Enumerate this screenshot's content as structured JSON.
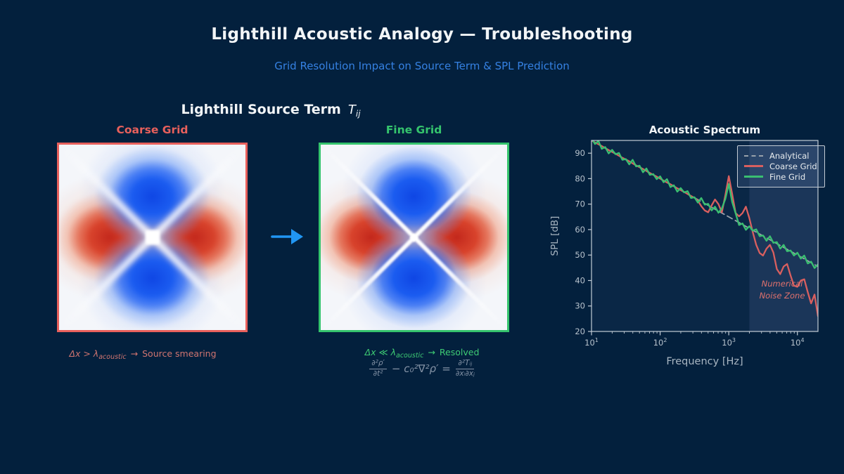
{
  "page": {
    "title": "Lighthill Acoustic Analogy — Troubleshooting",
    "subtitle": "Grid Resolution Impact on Source Term & SPL Prediction",
    "subtitle_color": "#3581e2",
    "background_color": "#03203d"
  },
  "source_term": {
    "heading": {
      "text": "Lighthill Source Term",
      "symbol": "T",
      "symbol_sub": "ij"
    },
    "arrow_icon": "right-arrow",
    "arrow_color": "#2196f3",
    "coarse": {
      "label": "Coarse Grid",
      "label_color": "#e8605c",
      "border_color": "#e8605c",
      "caption": {
        "pre": "Δx > λ",
        "sub": "acoustic",
        "arrow": "→",
        "post": "Source smearing"
      },
      "caption_color": "#cf7470"
    },
    "fine": {
      "label": "Fine Grid",
      "label_color": "#35c46d",
      "border_color": "#35c46d",
      "caption": {
        "pre": "Δx ≪ λ",
        "sub": "acoustic",
        "arrow": "→",
        "post": "Resolved"
      },
      "caption_color": "#3ecb74"
    },
    "equation": {
      "num1": "∂²ρ′",
      "den1": "∂t²",
      "mid": "− c₀²∇²ρ′ =",
      "num2": "∂²Tᵢⱼ",
      "den2": "∂xᵢ∂xⱼ",
      "color": "#8593a6"
    }
  },
  "chart_data": {
    "type": "line",
    "title": "Acoustic Spectrum",
    "xlabel": "Frequency [Hz]",
    "ylabel": "SPL [dB]",
    "xscale": "log",
    "xlim_log10": [
      1.0,
      4.3
    ],
    "ylim": [
      20,
      95
    ],
    "xticks_log10": [
      1,
      2,
      3,
      4
    ],
    "yticks": [
      20,
      30,
      40,
      50,
      60,
      70,
      80,
      90
    ],
    "grid": {
      "log_f_start": 1.0,
      "log_f_step": 0.05
    },
    "plot_bg": "#0a2746",
    "axis_color": "#c2ccd6",
    "tick_color": "#b7c2cc",
    "label_color": "#a9b6c2",
    "legend_position": "upper right",
    "noise_zone": {
      "label": [
        "Numerical",
        "Noise Zone"
      ],
      "from_log10": 3.301,
      "to_log10": 4.3,
      "from_hz": 2000,
      "to_hz": 20000,
      "color": "rgba(145,165,225,0.13)",
      "label_color": "#e0716d"
    },
    "series": [
      {
        "name": "Analytical",
        "color": "#9aa2ab",
        "dashed": true,
        "x_log10": [
          1.0,
          4.3
        ],
        "values": [
          95.0,
          45.5
        ]
      },
      {
        "name": "Coarse Grid",
        "color": "#d95f5f",
        "dashed": false,
        "values": [
          95.0,
          94.2,
          93.5,
          92.8,
          92.0,
          91.2,
          90.5,
          89.8,
          89.0,
          88.2,
          87.5,
          86.8,
          86.0,
          85.2,
          84.5,
          83.8,
          83.0,
          82.2,
          81.5,
          80.8,
          80.0,
          79.2,
          78.5,
          77.8,
          77.0,
          76.2,
          75.5,
          74.8,
          74.0,
          73.2,
          72.5,
          71.4,
          69.2,
          67.5,
          66.8,
          69.5,
          71.8,
          70.0,
          66.8,
          73.5,
          81.0,
          74.0,
          66.5,
          65.2,
          66.5,
          69.0,
          64.5,
          59.0,
          54.0,
          50.8,
          49.8,
          52.5,
          54.0,
          51.0,
          44.5,
          42.5,
          45.5,
          46.5,
          42.0,
          38.0,
          37.5,
          40.0,
          40.5,
          35.5,
          31.0,
          34.5,
          26.0
        ]
      },
      {
        "name": "Fine Grid",
        "color": "#3abf71",
        "dashed": false,
        "values": [
          95.9,
          93.6,
          94.8,
          91.7,
          92.4,
          89.9,
          91.3,
          89.6,
          90.1,
          87.4,
          87.7,
          85.6,
          87.4,
          84.8,
          85.1,
          82.5,
          84.0,
          81.5,
          81.8,
          79.8,
          80.9,
          78.6,
          79.8,
          76.7,
          77.4,
          74.9,
          76.3,
          74.6,
          75.1,
          72.4,
          72.7,
          70.6,
          72.4,
          69.8,
          70.1,
          67.5,
          69.0,
          66.6,
          68.4,
          72.0,
          77.9,
          70.8,
          66.4,
          61.8,
          62.4,
          59.9,
          61.3,
          59.6,
          60.1,
          57.4,
          57.7,
          55.6,
          57.4,
          54.8,
          55.1,
          52.5,
          54.0,
          51.5,
          51.8,
          49.8,
          50.9,
          48.6,
          49.8,
          46.7,
          47.4,
          44.9,
          46.3
        ]
      }
    ]
  }
}
